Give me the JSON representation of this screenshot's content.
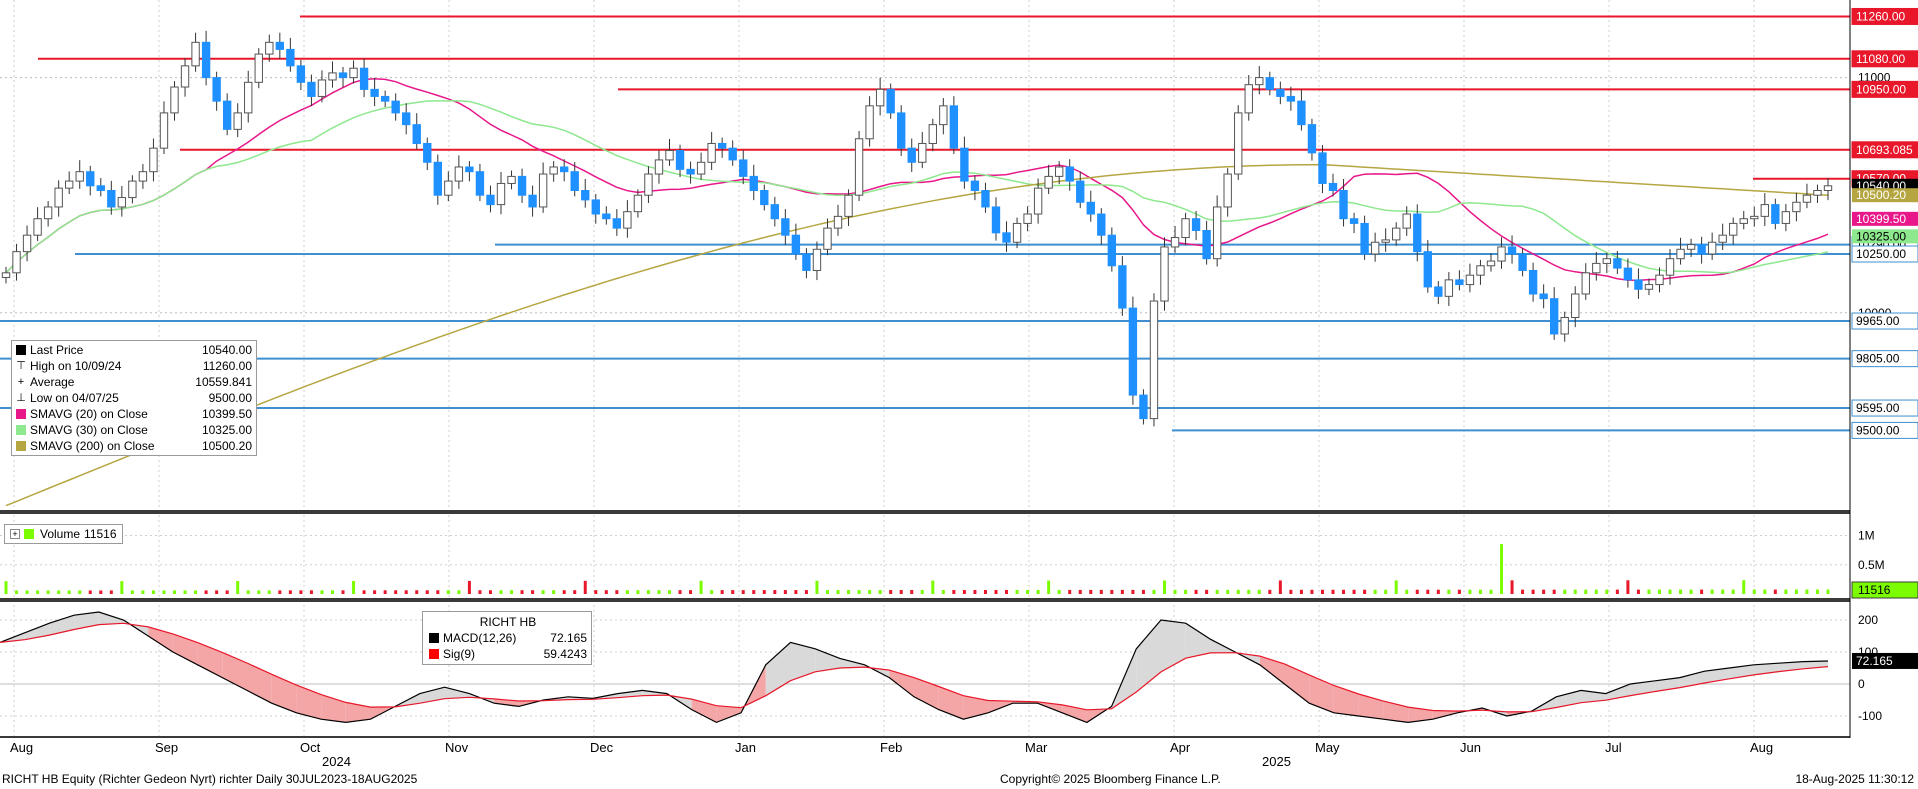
{
  "chart_data": {
    "type": "candlestick",
    "ticker_label": "RICHT HB",
    "footer": {
      "security": "RICHT HB Equity (Richter Gedeon Nyrt) richter  Daily 30JUL2023-18AUG2025",
      "copyright": "Copyright© 2025 Bloomberg Finance L.P.",
      "timestamp": "18-Aug-2025 11:30:12"
    },
    "x_axis": {
      "months": [
        "Aug",
        "Sep",
        "Oct",
        "Nov",
        "Dec",
        "Jan",
        "Feb",
        "Mar",
        "Apr",
        "May",
        "Jun",
        "Jul",
        "Aug"
      ],
      "years": [
        "2024",
        "2025"
      ]
    },
    "price_panel": {
      "y_ticks": [
        {
          "label": "11000",
          "value": 11000
        },
        {
          "label": "10000",
          "value": 10000
        }
      ],
      "legend": [
        {
          "label": "Last Price",
          "value": "10540.00",
          "color": "#000000"
        },
        {
          "label": "High on 10/09/24",
          "value": "11260.00",
          "color": "#666666"
        },
        {
          "label": "Average",
          "value": "10559.841",
          "color": "#666666"
        },
        {
          "label": "Low on 04/07/25",
          "value": "9500.00",
          "color": "#666666"
        },
        {
          "label": "SMAVG (20)  on Close",
          "value": "10399.50",
          "color": "#e8178a"
        },
        {
          "label": "SMAVG (30)  on Close",
          "value": "10325.00",
          "color": "#8ee88e"
        },
        {
          "label": "SMAVG (200)  on Close",
          "value": "10500.20",
          "color": "#b5a642"
        }
      ],
      "resistance_levels": [
        {
          "label": "11260.00",
          "value": 11260
        },
        {
          "label": "11080.00",
          "value": 11080
        },
        {
          "label": "10950.00",
          "value": 10950
        },
        {
          "label": "10693.085",
          "value": 10693.085
        },
        {
          "label": "10570.00",
          "value": 10570
        }
      ],
      "support_levels": [
        {
          "label": "10290.00",
          "value": 10290
        },
        {
          "label": "10250.00",
          "value": 10250
        },
        {
          "label": "9965.00",
          "value": 9965
        },
        {
          "label": "9805.00",
          "value": 9805
        },
        {
          "label": "9595.00",
          "value": 9595
        },
        {
          "label": "9500.00",
          "value": 9500
        }
      ],
      "tags": [
        {
          "label": "10540.00",
          "value": 10540,
          "color": "#000000"
        },
        {
          "label": "10500.20",
          "value": 10500,
          "color": "#b5a642"
        },
        {
          "label": "10399.50",
          "value": 10399.5,
          "color": "#e8178a"
        },
        {
          "label": "10325.00",
          "value": 10325,
          "color": "#8ee88e"
        }
      ],
      "close_series": [
        10170,
        10260,
        10330,
        10400,
        10450,
        10530,
        10560,
        10600,
        10540,
        10520,
        10450,
        10490,
        10560,
        10600,
        10700,
        10850,
        10960,
        11050,
        11150,
        11000,
        10900,
        10780,
        10850,
        10980,
        11100,
        11150,
        11120,
        11050,
        10980,
        10920,
        10990,
        11020,
        11000,
        11040,
        10950,
        10920,
        10900,
        10850,
        10800,
        10720,
        10640,
        10500,
        10560,
        10620,
        10600,
        10500,
        10460,
        10550,
        10580,
        10500,
        10450,
        10590,
        10620,
        10600,
        10520,
        10480,
        10420,
        10400,
        10360,
        10430,
        10500,
        10590,
        10650,
        10690,
        10610,
        10590,
        10640,
        10720,
        10700,
        10650,
        10580,
        10520,
        10460,
        10400,
        10330,
        10250,
        10180,
        10270,
        10360,
        10410,
        10500,
        10740,
        10880,
        10950,
        10850,
        10700,
        10640,
        10720,
        10800,
        10880,
        10700,
        10560,
        10520,
        10450,
        10340,
        10300,
        10380,
        10420,
        10530,
        10580,
        10620,
        10560,
        10470,
        10420,
        10330,
        10200,
        10020,
        9650,
        9550,
        10050,
        10280,
        10320,
        10400,
        10350,
        10230,
        10450,
        10590,
        10850,
        10970,
        11000,
        10950,
        10920,
        10900,
        10800,
        10680,
        10550,
        10520,
        10400,
        10380,
        10250,
        10300,
        10310,
        10360,
        10420,
        10260,
        10110,
        10070,
        10140,
        10120,
        10160,
        10200,
        10220,
        10280,
        10250,
        10180,
        10080,
        10060,
        9910,
        9980,
        10080,
        10170,
        10210,
        10230,
        10190,
        10140,
        10100,
        10120,
        10160,
        10230,
        10270,
        10290,
        10250,
        10300,
        10330,
        10380,
        10400,
        10410,
        10460,
        10380,
        10430,
        10470,
        10500,
        10520,
        10540
      ],
      "sma200_start": 9180,
      "sma200_peak": 10630,
      "sma200_end": 10500
    },
    "volume_panel": {
      "legend_label": "Volume",
      "legend_value": "11516",
      "y_ticks": [
        {
          "label": "1M",
          "value": 1000000
        },
        {
          "label": "0.5M",
          "value": 500000
        }
      ],
      "last_tag": "11516"
    },
    "macd_panel": {
      "legend_title": "RICHT HB",
      "legend": [
        {
          "label": "MACD(12,26)",
          "value": "72.165",
          "color": "#000000"
        },
        {
          "label": "Sig(9)",
          "value": "59.4243",
          "color": "#ff0000"
        }
      ],
      "y_ticks": [
        {
          "label": "200",
          "value": 200
        },
        {
          "label": "100",
          "value": 100
        },
        {
          "label": "0",
          "value": 0
        },
        {
          "label": "-100",
          "value": -100
        }
      ],
      "last_tag": "72.165",
      "macd_series": [
        130,
        160,
        190,
        215,
        225,
        200,
        150,
        100,
        60,
        20,
        -20,
        -60,
        -90,
        -110,
        -120,
        -110,
        -70,
        -30,
        -10,
        -30,
        -60,
        -70,
        -50,
        -40,
        -45,
        -30,
        -20,
        -30,
        -80,
        -120,
        -90,
        60,
        130,
        110,
        80,
        60,
        20,
        -40,
        -80,
        -110,
        -90,
        -60,
        -60,
        -90,
        -120,
        -70,
        110,
        200,
        190,
        140,
        100,
        60,
        0,
        -60,
        -90,
        -100,
        -110,
        -120,
        -110,
        -90,
        -75,
        -100,
        -85,
        -40,
        -20,
        -30,
        0,
        10,
        20,
        40,
        50,
        60,
        65,
        70,
        72
      ]
    }
  }
}
